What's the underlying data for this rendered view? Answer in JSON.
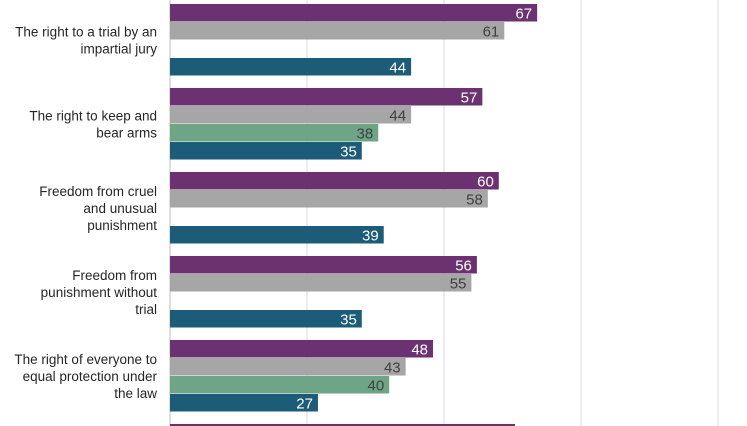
{
  "chart_data": {
    "type": "bar",
    "orientation": "horizontal",
    "xlim": [
      0,
      100
    ],
    "grid": true,
    "categories": [
      {
        "label": [
          "The right to a trial by an",
          "impartial jury"
        ],
        "values": [
          67,
          61,
          null,
          44
        ]
      },
      {
        "label": [
          "The right to keep and",
          "bear arms"
        ],
        "values": [
          57,
          44,
          38,
          35
        ]
      },
      {
        "label": [
          "Freedom from cruel",
          "and unusual",
          "punishment"
        ],
        "values": [
          60,
          58,
          null,
          39
        ]
      },
      {
        "label": [
          "Freedom from",
          "punishment without",
          "trial"
        ],
        "values": [
          56,
          55,
          null,
          35
        ]
      },
      {
        "label": [
          "The right of everyone to",
          "equal protection under",
          "the law"
        ],
        "values": [
          48,
          43,
          40,
          27
        ]
      }
    ],
    "series_colors": [
      "#6b3170",
      "#a6a6a6",
      "#6fa587",
      "#1d5c78"
    ],
    "label_colors": [
      "#ffffff",
      "#404040",
      "#404040",
      "#ffffff"
    ]
  }
}
